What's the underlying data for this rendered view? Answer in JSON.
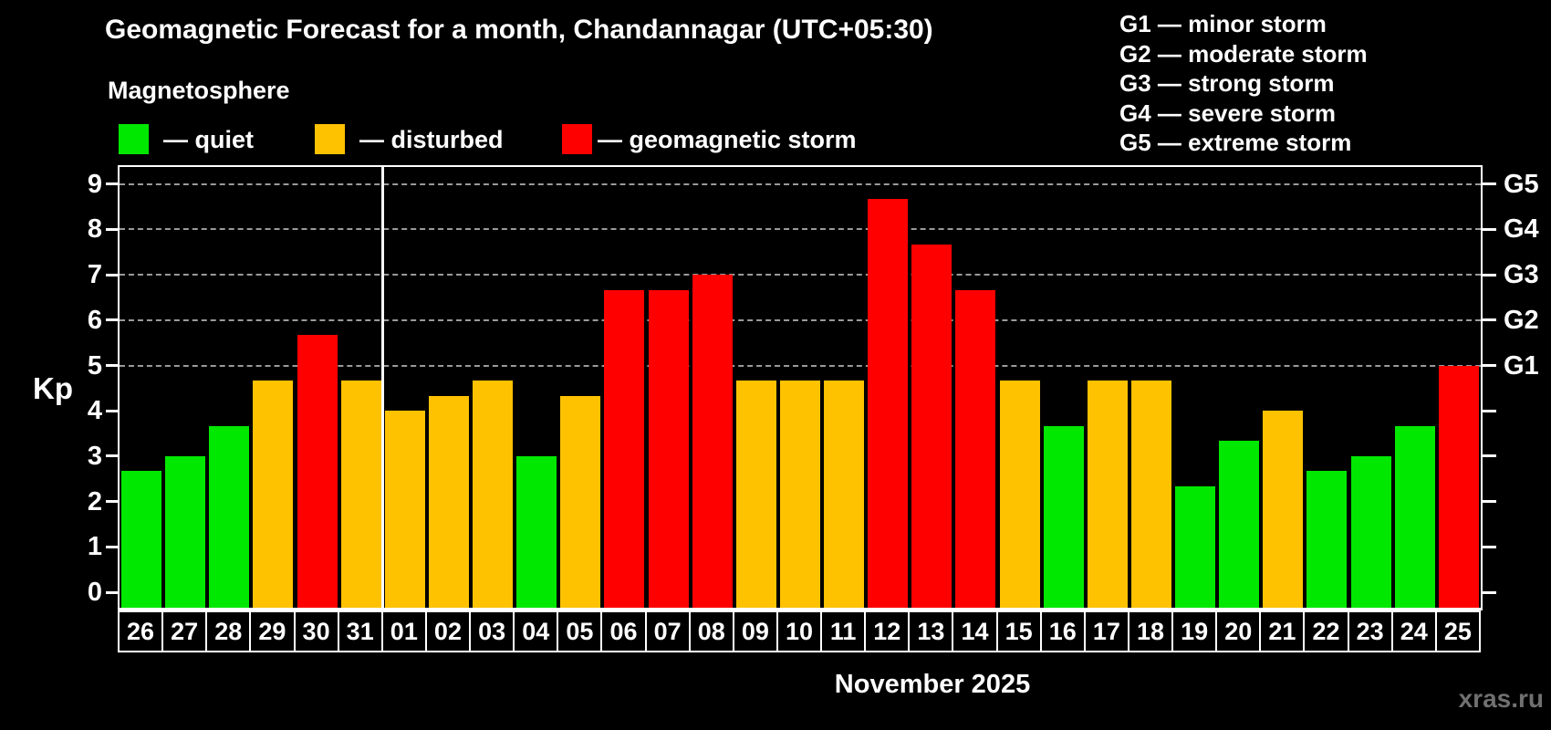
{
  "title": "Geomagnetic Forecast for a month, Chandannagar (UTC+05:30)",
  "subtitle": "Magnetosphere",
  "month_label": "November 2025",
  "watermark": "xras.ru",
  "ylabel": "Kp",
  "colors": {
    "background": "#000000",
    "axis": "#ffffff",
    "grid": "#9a9a9a",
    "quiet": "#00e800",
    "disturbed": "#ffc200",
    "storm": "#ff0000",
    "watermark": "#707070"
  },
  "bar_legend": [
    {
      "label": "— quiet",
      "state": "quiet"
    },
    {
      "label": "— disturbed",
      "state": "disturbed"
    },
    {
      "label": "— geomagnetic storm",
      "state": "storm"
    }
  ],
  "g_scale_legend": [
    "G1 — minor storm",
    "G2 — moderate storm",
    "G3 — strong storm",
    "G4 — severe storm",
    "G5 — extreme storm"
  ],
  "chart_data": {
    "type": "bar",
    "title": "Geomagnetic Forecast for a month, Chandannagar (UTC+05:30)",
    "xlabel": "November 2025",
    "ylabel": "Kp",
    "ylim": [
      -0.35,
      9.4
    ],
    "yticks": [
      0,
      1,
      2,
      3,
      4,
      5,
      6,
      7,
      8,
      9
    ],
    "gridlines_at": [
      5,
      6,
      7,
      8,
      9
    ],
    "grid": true,
    "legend_position": "top-left",
    "right_axis": [
      {
        "label": "G1",
        "kp": 5
      },
      {
        "label": "G2",
        "kp": 6
      },
      {
        "label": "G3",
        "kp": 7
      },
      {
        "label": "G4",
        "kp": 8
      },
      {
        "label": "G5",
        "kp": 9
      }
    ],
    "month_separator_after_index": 5,
    "categories": [
      "26",
      "27",
      "28",
      "29",
      "30",
      "31",
      "01",
      "02",
      "03",
      "04",
      "05",
      "06",
      "07",
      "08",
      "09",
      "10",
      "11",
      "12",
      "13",
      "14",
      "15",
      "16",
      "17",
      "18",
      "19",
      "20",
      "21",
      "22",
      "23",
      "24",
      "25"
    ],
    "values": [
      2.67,
      3.0,
      3.67,
      4.67,
      5.67,
      4.67,
      4.0,
      4.33,
      4.67,
      3.0,
      4.33,
      6.67,
      6.67,
      7.0,
      4.67,
      4.67,
      4.67,
      8.67,
      7.67,
      6.67,
      4.67,
      3.67,
      4.67,
      4.67,
      2.33,
      3.33,
      4.0,
      2.67,
      3.0,
      3.67,
      5.0
    ],
    "states": [
      "quiet",
      "quiet",
      "quiet",
      "disturbed",
      "storm",
      "disturbed",
      "disturbed",
      "disturbed",
      "disturbed",
      "quiet",
      "disturbed",
      "storm",
      "storm",
      "storm",
      "disturbed",
      "disturbed",
      "disturbed",
      "storm",
      "storm",
      "storm",
      "disturbed",
      "quiet",
      "disturbed",
      "disturbed",
      "quiet",
      "quiet",
      "disturbed",
      "quiet",
      "quiet",
      "quiet",
      "storm"
    ]
  }
}
